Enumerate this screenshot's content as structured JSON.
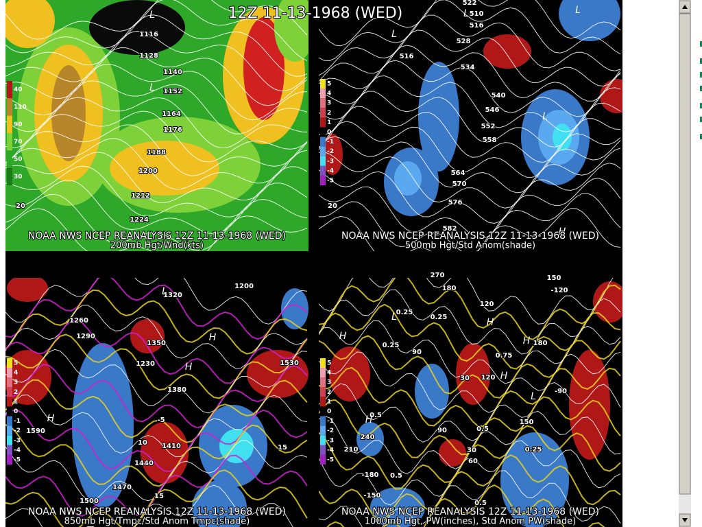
{
  "header": {
    "title": "12Z 11-13-1968 (WED)"
  },
  "panels": [
    {
      "caption": "NOAA NWS NCEP REANALYSIS 12Z 11-13-1968 (WED)",
      "subcaption": "200mb Hgt/Wnd(kts)",
      "legend": [
        "40",
        "110",
        "90",
        "70",
        "50",
        "30"
      ],
      "labels": [
        "1116",
        "1128",
        "1140",
        "1152",
        "1164",
        "1176",
        "1188",
        "1200",
        "1212",
        "1224",
        "20"
      ],
      "markers": [
        "L",
        "L"
      ]
    },
    {
      "caption": "NOAA NWS NCEP REANALYSIS 12Z 11-13-1968 (WED)",
      "subcaption": "500mb Hgt/Std Anom(shade)",
      "legend": [
        "5",
        "4",
        "3",
        "2",
        "1",
        "0",
        "-1",
        "-2",
        "-3",
        "-4",
        "-5"
      ],
      "labels": [
        "522",
        "510",
        "516",
        "528",
        "516",
        "534",
        "540",
        "546",
        "552",
        "558",
        "564",
        "570",
        "576",
        "582",
        "20"
      ],
      "markers": [
        "L",
        "L",
        "L",
        "L",
        "H"
      ]
    },
    {
      "caption": "NOAA NWS NCEP REANALYSIS 12Z 11-13-1968 (WED)",
      "subcaption": "850mb Hgt/Tmpc/Std Anom Tmpc(shade)",
      "legend": [
        "5",
        "4",
        "3",
        "2",
        "1",
        "0",
        "-1",
        "-2",
        "-3",
        "-4",
        "-5"
      ],
      "labels": [
        "1200",
        "1260",
        "1290",
        "1320",
        "1350",
        "1230",
        "1380",
        "1410",
        "1440",
        "1470",
        "1500",
        "1530",
        "1590",
        "-5",
        "10",
        "15",
        "15"
      ],
      "markers": [
        "H",
        "H",
        "H",
        "L"
      ]
    },
    {
      "caption": "NOAA NWS NCEP REANALYSIS 12Z 11-13-1968 (WED)",
      "subcaption": "1000mb Hgt, PW(inches), Std Anom PW(shade)",
      "legend": [
        "5",
        "4",
        "3",
        "2",
        "1",
        "0",
        "-1",
        "-2",
        "-3",
        "-4",
        "-5"
      ],
      "labels": [
        "270",
        "180",
        "120",
        "150",
        "-120",
        "0.25",
        "0.25",
        "0.25",
        "0.75",
        "90",
        "30",
        "120",
        "180",
        "-90",
        "240",
        "210",
        "0.5",
        "90",
        "0.5",
        "150",
        "0.25",
        "30",
        "60",
        "-180",
        "0.5",
        "-150",
        "0.5"
      ],
      "markers": [
        "H",
        "H",
        "L",
        "H",
        "H",
        "L",
        "H"
      ]
    }
  ]
}
